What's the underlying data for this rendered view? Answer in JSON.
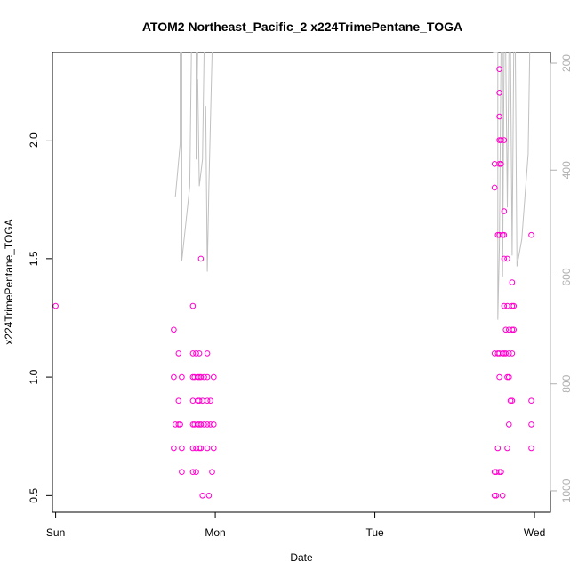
{
  "chart_data": {
    "type": "scatter",
    "title": "ATOM2 Northeast_Pacific_2 x224TrimePentane_TOGA",
    "xlabel": "Date",
    "ylabel": "x224TrimePentane_TOGA",
    "xlim": [
      -0.02,
      3.1
    ],
    "ylim": [
      0.43,
      2.37
    ],
    "x_ticks": [
      {
        "v": 0,
        "label": "Sun"
      },
      {
        "v": 1,
        "label": "Mon"
      },
      {
        "v": 2,
        "label": "Tue"
      },
      {
        "v": 3,
        "label": "Wed"
      }
    ],
    "y_ticks": [
      {
        "v": 0.5,
        "label": "0.5"
      },
      {
        "v": 1.0,
        "label": "1.0"
      },
      {
        "v": 1.5,
        "label": "1.5"
      },
      {
        "v": 2.0,
        "label": "2.0"
      }
    ],
    "right_axis": {
      "ylim": [
        1040,
        180
      ],
      "ticks": [
        {
          "v": 200,
          "label": "200"
        },
        {
          "v": 400,
          "label": "400"
        },
        {
          "v": 600,
          "label": "600"
        },
        {
          "v": 800,
          "label": "800"
        },
        {
          "v": 1000,
          "label": "1000"
        }
      ],
      "color": "#b0b0b0"
    },
    "points_color": "#ff00cc",
    "line_color": "#c0c0c0",
    "points": [
      [
        0.0,
        1.3
      ],
      [
        0.74,
        1.2
      ],
      [
        0.74,
        1.0
      ],
      [
        0.75,
        0.8
      ],
      [
        0.74,
        0.7
      ],
      [
        0.77,
        1.1
      ],
      [
        0.77,
        0.9
      ],
      [
        0.77,
        0.8
      ],
      [
        0.78,
        0.8
      ],
      [
        0.79,
        1.0
      ],
      [
        0.79,
        0.7
      ],
      [
        0.79,
        0.6
      ],
      [
        0.86,
        1.3
      ],
      [
        0.86,
        1.1
      ],
      [
        0.86,
        1.0
      ],
      [
        0.86,
        0.9
      ],
      [
        0.86,
        0.8
      ],
      [
        0.86,
        0.7
      ],
      [
        0.86,
        0.6
      ],
      [
        0.87,
        1.0
      ],
      [
        0.87,
        0.8
      ],
      [
        0.88,
        1.1
      ],
      [
        0.88,
        0.7
      ],
      [
        0.88,
        0.6
      ],
      [
        0.89,
        1.0
      ],
      [
        0.89,
        0.9
      ],
      [
        0.89,
        0.8
      ],
      [
        0.9,
        1.1
      ],
      [
        0.9,
        1.0
      ],
      [
        0.9,
        0.9
      ],
      [
        0.9,
        0.8
      ],
      [
        0.9,
        0.7
      ],
      [
        0.91,
        1.5
      ],
      [
        0.91,
        1.0
      ],
      [
        0.91,
        0.8
      ],
      [
        0.91,
        0.7
      ],
      [
        0.92,
        0.5
      ],
      [
        0.92,
        0.9
      ],
      [
        0.93,
        1.0
      ],
      [
        0.93,
        0.8
      ],
      [
        0.95,
        1.1
      ],
      [
        0.95,
        1.0
      ],
      [
        0.95,
        0.9
      ],
      [
        0.95,
        0.8
      ],
      [
        0.95,
        0.7
      ],
      [
        0.96,
        0.5
      ],
      [
        0.97,
        0.9
      ],
      [
        0.97,
        0.8
      ],
      [
        0.98,
        0.6
      ],
      [
        0.99,
        1.0
      ],
      [
        0.99,
        0.8
      ],
      [
        0.99,
        0.7
      ],
      [
        2.75,
        1.9
      ],
      [
        2.75,
        1.8
      ],
      [
        2.75,
        1.1
      ],
      [
        2.75,
        0.6
      ],
      [
        2.75,
        0.5
      ],
      [
        2.76,
        0.6
      ],
      [
        2.76,
        0.5
      ],
      [
        2.77,
        0.7
      ],
      [
        2.77,
        1.6
      ],
      [
        2.77,
        1.1
      ],
      [
        2.78,
        2.3
      ],
      [
        2.78,
        2.0
      ],
      [
        2.78,
        1.9
      ],
      [
        2.78,
        2.2
      ],
      [
        2.78,
        2.1
      ],
      [
        2.78,
        1.6
      ],
      [
        2.78,
        1.1
      ],
      [
        2.78,
        1.0
      ],
      [
        2.78,
        0.6
      ],
      [
        2.79,
        2.0
      ],
      [
        2.79,
        1.9
      ],
      [
        2.79,
        0.6
      ],
      [
        2.8,
        1.1
      ],
      [
        2.8,
        1.6
      ],
      [
        2.8,
        0.5
      ],
      [
        2.81,
        2.0
      ],
      [
        2.81,
        1.7
      ],
      [
        2.81,
        1.6
      ],
      [
        2.81,
        1.5
      ],
      [
        2.81,
        1.3
      ],
      [
        2.81,
        1.1
      ],
      [
        2.82,
        1.2
      ],
      [
        2.82,
        1.1
      ],
      [
        2.83,
        1.5
      ],
      [
        2.83,
        1.3
      ],
      [
        2.83,
        1.0
      ],
      [
        2.83,
        0.7
      ],
      [
        2.84,
        1.2
      ],
      [
        2.84,
        1.1
      ],
      [
        2.84,
        1.0
      ],
      [
        2.84,
        0.8
      ],
      [
        2.85,
        0.9
      ],
      [
        2.86,
        1.3
      ],
      [
        2.86,
        1.2
      ],
      [
        2.86,
        1.1
      ],
      [
        2.86,
        0.9
      ],
      [
        2.86,
        1.4
      ],
      [
        2.87,
        1.3
      ],
      [
        2.87,
        1.2
      ],
      [
        2.98,
        1.6
      ],
      [
        2.98,
        0.9
      ],
      [
        2.98,
        0.8
      ],
      [
        2.98,
        0.7
      ]
    ],
    "line_segments": [
      [
        [
          0.75,
          450
        ],
        [
          0.78,
          350
        ],
        [
          0.78,
          170
        ]
      ],
      [
        [
          0.79,
          170
        ],
        [
          0.79,
          570
        ],
        [
          0.84,
          430
        ],
        [
          0.85,
          170
        ]
      ],
      [
        [
          0.88,
          170
        ],
        [
          0.88,
          380
        ],
        [
          0.89,
          170
        ]
      ],
      [
        [
          0.89,
          230
        ],
        [
          0.9,
          430
        ],
        [
          0.92,
          380
        ],
        [
          0.93,
          170
        ]
      ],
      [
        [
          0.94,
          280
        ],
        [
          0.95,
          590
        ],
        [
          0.96,
          430
        ],
        [
          0.98,
          170
        ]
      ],
      [
        [
          2.74,
          170
        ],
        [
          2.77,
          180
        ],
        [
          2.77,
          680
        ],
        [
          2.78,
          540
        ],
        [
          2.79,
          170
        ]
      ],
      [
        [
          2.8,
          170
        ],
        [
          2.8,
          420
        ],
        [
          2.8,
          600
        ],
        [
          2.81,
          170
        ]
      ],
      [
        [
          2.82,
          170
        ],
        [
          2.83,
          470
        ],
        [
          2.84,
          170
        ]
      ],
      [
        [
          2.85,
          170
        ],
        [
          2.86,
          560
        ],
        [
          2.87,
          170
        ]
      ],
      [
        [
          2.88,
          170
        ],
        [
          2.89,
          580
        ],
        [
          2.92,
          530
        ],
        [
          2.96,
          370
        ],
        [
          2.97,
          170
        ]
      ]
    ]
  }
}
